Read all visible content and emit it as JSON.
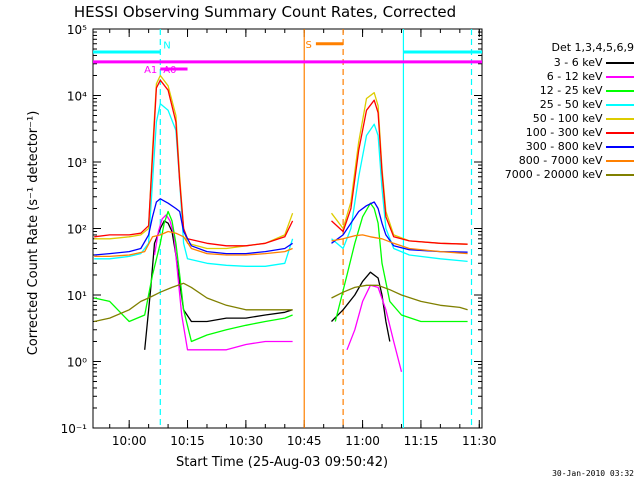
{
  "chart_data": {
    "type": "line",
    "title": "HESSI Observing Summary Count Rates, Corrected",
    "xlabel": "Start Time (25-Aug-03 09:50:42)",
    "ylabel": "Corrected Count Rate (s⁻¹ detector⁻¹)",
    "y_scale": "log",
    "xlim": [
      "09:50:42",
      "11:30:42"
    ],
    "ylim": [
      0.1,
      100000
    ],
    "x_ticks": [
      "10:00",
      "10:15",
      "10:30",
      "10:45",
      "11:00",
      "11:15",
      "11:30"
    ],
    "y_ticks": [
      0.1,
      1,
      10,
      100,
      1000,
      10000,
      100000
    ],
    "y_tick_labels": [
      "10⁻¹",
      "10⁰",
      "10¹",
      "10²",
      "10³",
      "10⁴",
      "10⁵"
    ],
    "legend_title": "Det 1,3,4,5,6,9",
    "legend_position": "right",
    "series": [
      {
        "name": "3 - 6 keV",
        "color": "#000000",
        "segments": [
          {
            "x": [
              "10:04:00",
              "10:05:30",
              "10:06:30",
              "10:08:00",
              "10:09:00",
              "10:10:00",
              "10:11:00",
              "10:12:00",
              "10:13:00",
              "10:14:00",
              "10:16:00",
              "10:20:00",
              "10:25:00",
              "10:30:00",
              "10:35:00",
              "10:40:00",
              "10:42:00"
            ],
            "y": [
              1.5,
              12,
              60,
              100,
              130,
              120,
              90,
              40,
              15,
              6,
              4,
              4,
              4.5,
              4.5,
              5,
              5.5,
              6
            ]
          },
          {
            "x": [
              "10:52:00",
              "10:55:00",
              "10:58:00",
              "11:00:00",
              "11:02:00",
              "11:04:00",
              "11:05:00",
              "11:06:00",
              "11:07:00"
            ],
            "y": [
              4,
              6,
              10,
              16,
              22,
              18,
              10,
              4,
              2
            ]
          }
        ]
      },
      {
        "name": "6 - 12 keV",
        "color": "#ff00ff",
        "segments": [
          {
            "x": [
              "10:06:30",
              "10:07:30",
              "10:08:30",
              "10:09:30",
              "10:10:30",
              "10:11:30",
              "10:12:30",
              "10:13:30",
              "10:15:00",
              "10:20:00",
              "10:25:00",
              "10:30:00",
              "10:35:00",
              "10:40:00",
              "10:42:00"
            ],
            "y": [
              40,
              90,
              140,
              160,
              130,
              80,
              20,
              5,
              1.5,
              1.5,
              1.5,
              1.8,
              2,
              2,
              2
            ]
          },
          {
            "x": [
              "10:56:00",
              "10:58:00",
              "11:00:00",
              "11:02:00",
              "11:04:00",
              "11:06:00",
              "11:08:00",
              "11:10:00"
            ],
            "y": [
              1.5,
              3,
              8,
              14,
              13,
              6,
              2,
              0.7
            ]
          }
        ]
      },
      {
        "name": "12 - 25 keV",
        "color": "#00ff00",
        "segments": [
          {
            "x": [
              "09:51:00",
              "09:55:00",
              "10:00:00",
              "10:04:00",
              "10:06:00",
              "10:08:00",
              "10:09:00",
              "10:10:00",
              "10:11:00",
              "10:12:00",
              "10:13:00",
              "10:14:00",
              "10:16:00",
              "10:20:00",
              "10:25:00",
              "10:30:00",
              "10:35:00",
              "10:40:00",
              "10:42:00"
            ],
            "y": [
              9,
              8,
              4,
              5,
              20,
              60,
              120,
              180,
              130,
              60,
              20,
              6,
              2,
              2.5,
              3,
              3.5,
              4,
              4.5,
              5
            ]
          },
          {
            "x": [
              "10:53:00",
              "10:56:00",
              "10:58:00",
              "11:00:00",
              "11:02:00",
              "11:03:00",
              "11:04:00",
              "11:05:00",
              "11:07:00",
              "11:10:00",
              "11:15:00",
              "11:20:00",
              "11:25:00",
              "11:27:00"
            ],
            "y": [
              4,
              20,
              60,
              150,
              240,
              200,
              120,
              30,
              8,
              5,
              4,
              4,
              4,
              4
            ]
          }
        ]
      },
      {
        "name": "25 - 50 keV",
        "color": "#00ffff",
        "segments": [
          {
            "x": [
              "09:51:00",
              "09:55:00",
              "10:00:00",
              "10:03:00",
              "10:05:00",
              "10:06:00",
              "10:07:00",
              "10:08:00",
              "10:10:00",
              "10:12:00",
              "10:13:00",
              "10:14:00",
              "10:15:00",
              "10:20:00",
              "10:25:00",
              "10:30:00",
              "10:35:00",
              "10:40:00",
              "10:42:00"
            ],
            "y": [
              35,
              35,
              38,
              42,
              60,
              500,
              4000,
              7500,
              6000,
              3000,
              500,
              60,
              35,
              30,
              28,
              27,
              27,
              30,
              70
            ]
          },
          {
            "x": [
              "10:52:00",
              "10:55:00",
              "10:57:00",
              "10:59:00",
              "11:01:00",
              "11:03:00",
              "11:04:00",
              "11:05:00",
              "11:06:00",
              "11:08:00",
              "11:12:00",
              "11:20:00",
              "11:27:00"
            ],
            "y": [
              70,
              50,
              100,
              600,
              2500,
              3700,
              2500,
              400,
              100,
              50,
              40,
              35,
              32
            ]
          }
        ]
      },
      {
        "name": "50 - 100 keV",
        "color": "#ddcc00",
        "segments": [
          {
            "x": [
              "09:51:00",
              "09:55:00",
              "10:00:00",
              "10:03:00",
              "10:05:00",
              "10:06:00",
              "10:07:00",
              "10:08:00",
              "10:10:00",
              "10:12:00",
              "10:13:00",
              "10:14:00",
              "10:15:00",
              "10:20:00",
              "10:25:00",
              "10:30:00",
              "10:35:00",
              "10:40:00",
              "10:42:00"
            ],
            "y": [
              70,
              70,
              75,
              80,
              100,
              1500,
              15000,
              20000,
              14000,
              5000,
              600,
              100,
              60,
              50,
              50,
              55,
              60,
              80,
              170
            ]
          },
          {
            "x": [
              "10:52:00",
              "10:55:00",
              "10:57:00",
              "10:59:00",
              "11:01:00",
              "11:03:00",
              "11:04:00",
              "11:05:00",
              "11:06:00",
              "11:08:00",
              "11:12:00",
              "11:20:00",
              "11:27:00"
            ],
            "y": [
              170,
              100,
              250,
              2000,
              9000,
              11000,
              7000,
              800,
              180,
              80,
              65,
              60,
              58
            ]
          }
        ]
      },
      {
        "name": "100 - 300 keV",
        "color": "#ff0000",
        "segments": [
          {
            "x": [
              "09:51:00",
              "09:55:00",
              "10:00:00",
              "10:03:00",
              "10:05:00",
              "10:06:00",
              "10:07:00",
              "10:08:00",
              "10:10:00",
              "10:12:00",
              "10:13:00",
              "10:14:00",
              "10:15:00",
              "10:20:00",
              "10:25:00",
              "10:30:00",
              "10:35:00",
              "10:40:00",
              "10:42:00"
            ],
            "y": [
              75,
              80,
              80,
              85,
              110,
              1200,
              13000,
              17000,
              12000,
              4000,
              500,
              100,
              70,
              60,
              55,
              55,
              60,
              75,
              130
            ]
          },
          {
            "x": [
              "10:52:00",
              "10:55:00",
              "10:57:00",
              "10:59:00",
              "11:01:00",
              "11:03:00",
              "11:04:00",
              "11:05:00",
              "11:06:00",
              "11:08:00",
              "11:12:00",
              "11:20:00",
              "11:27:00"
            ],
            "y": [
              130,
              90,
              200,
              1500,
              6000,
              8500,
              5500,
              700,
              150,
              75,
              65,
              60,
              58
            ]
          }
        ]
      },
      {
        "name": "300 - 800 keV",
        "color": "#0000ff",
        "segments": [
          {
            "x": [
              "09:51:00",
              "09:55:00",
              "10:00:00",
              "10:03:00",
              "10:05:00",
              "10:06:00",
              "10:07:00",
              "10:08:00",
              "10:10:00",
              "10:12:00",
              "10:13:00",
              "10:14:00",
              "10:16:00",
              "10:20:00",
              "10:25:00",
              "10:30:00",
              "10:35:00",
              "10:40:00",
              "10:42:00"
            ],
            "y": [
              40,
              42,
              45,
              50,
              80,
              150,
              250,
              280,
              240,
              200,
              180,
              90,
              55,
              45,
              42,
              42,
              45,
              50,
              60
            ]
          },
          {
            "x": [
              "10:52:00",
              "10:55:00",
              "10:57:00",
              "10:59:00",
              "11:01:00",
              "11:03:00",
              "11:04:00",
              "11:05:00",
              "11:06:00",
              "11:08:00",
              "11:12:00",
              "11:20:00",
              "11:27:00"
            ],
            "y": [
              60,
              80,
              120,
              180,
              220,
              250,
              200,
              120,
              80,
              55,
              48,
              45,
              44
            ]
          }
        ]
      },
      {
        "name": "800 - 7000 keV",
        "color": "#ff8000",
        "segments": [
          {
            "x": [
              "09:51:00",
              "09:55:00",
              "10:00:00",
              "10:04:00",
              "10:06:00",
              "10:08:00",
              "10:10:00",
              "10:12:00",
              "10:14:00",
              "10:16:00",
              "10:20:00",
              "10:25:00",
              "10:30:00",
              "10:35:00",
              "10:40:00",
              "10:42:00"
            ],
            "y": [
              38,
              38,
              40,
              45,
              75,
              80,
              90,
              85,
              75,
              50,
              42,
              40,
              40,
              42,
              45,
              50
            ]
          },
          {
            "x": [
              "10:52:00",
              "10:55:00",
              "10:58:00",
              "11:00:00",
              "11:02:00",
              "11:05:00",
              "11:08:00",
              "11:12:00",
              "11:20:00",
              "11:27:00"
            ],
            "y": [
              65,
              70,
              78,
              80,
              75,
              70,
              60,
              50,
              45,
              42
            ]
          }
        ]
      },
      {
        "name": "7000 - 20000 keV",
        "color": "#808000",
        "segments": [
          {
            "x": [
              "09:51:00",
              "09:55:00",
              "10:00:00",
              "10:03:00",
              "10:05:00",
              "10:08:00",
              "10:11:00",
              "10:14:00",
              "10:16:00",
              "10:20:00",
              "10:25:00",
              "10:30:00",
              "10:35:00",
              "10:40:00",
              "10:42:00"
            ],
            "y": [
              4,
              4.5,
              6,
              8,
              9,
              11,
              13,
              15,
              13,
              9,
              7,
              6,
              6,
              6,
              6
            ]
          },
          {
            "x": [
              "10:52:00",
              "10:55:00",
              "10:58:00",
              "11:01:00",
              "11:04:00",
              "11:07:00",
              "11:10:00",
              "11:15:00",
              "11:20:00",
              "11:25:00",
              "11:27:00"
            ],
            "y": [
              9,
              11,
              13,
              14,
              14,
              12,
              10,
              8,
              7,
              6.5,
              6
            ]
          }
        ]
      }
    ],
    "flags": [
      {
        "label": "",
        "color": "#00ffff",
        "x_start": "09:50:42",
        "x_end": "10:08:00",
        "level": 45000
      },
      {
        "label": "",
        "color": "#00ffff",
        "x_start": "11:10:30",
        "x_end": "11:30:42",
        "level": 45000
      },
      {
        "label": "",
        "color": "#ff00ff",
        "x_start": "09:50:42",
        "x_end": "11:30:42",
        "level": 32000
      },
      {
        "label": "A1",
        "color": "#ff00ff",
        "x_start": "10:08:00",
        "x_end": "10:08:00",
        "level": 25000
      },
      {
        "label": "N",
        "color": "#00ffff",
        "x_start": "10:08:00",
        "x_end": "10:08:00",
        "level": 55000
      },
      {
        "label": "A0",
        "color": "#ff00ff",
        "x_start": "10:08:00",
        "x_end": "10:15:00",
        "level": 25000
      },
      {
        "label": "S",
        "color": "#ff8000",
        "x_start": "10:48:00",
        "x_end": "10:55:00",
        "level": 60000
      }
    ],
    "vertical_markers": [
      {
        "x": "10:08:00",
        "color": "#00ffff",
        "style": "dashed"
      },
      {
        "x": "10:45:00",
        "color": "#ff8000",
        "style": "solid"
      },
      {
        "x": "10:55:00",
        "color": "#ff8000",
        "style": "dashed"
      },
      {
        "x": "11:10:30",
        "color": "#00ffff",
        "style": "solid"
      },
      {
        "x": "11:28:00",
        "color": "#00ffff",
        "style": "dashed"
      }
    ]
  },
  "footer_date": "30-Jan-2010 03:32"
}
